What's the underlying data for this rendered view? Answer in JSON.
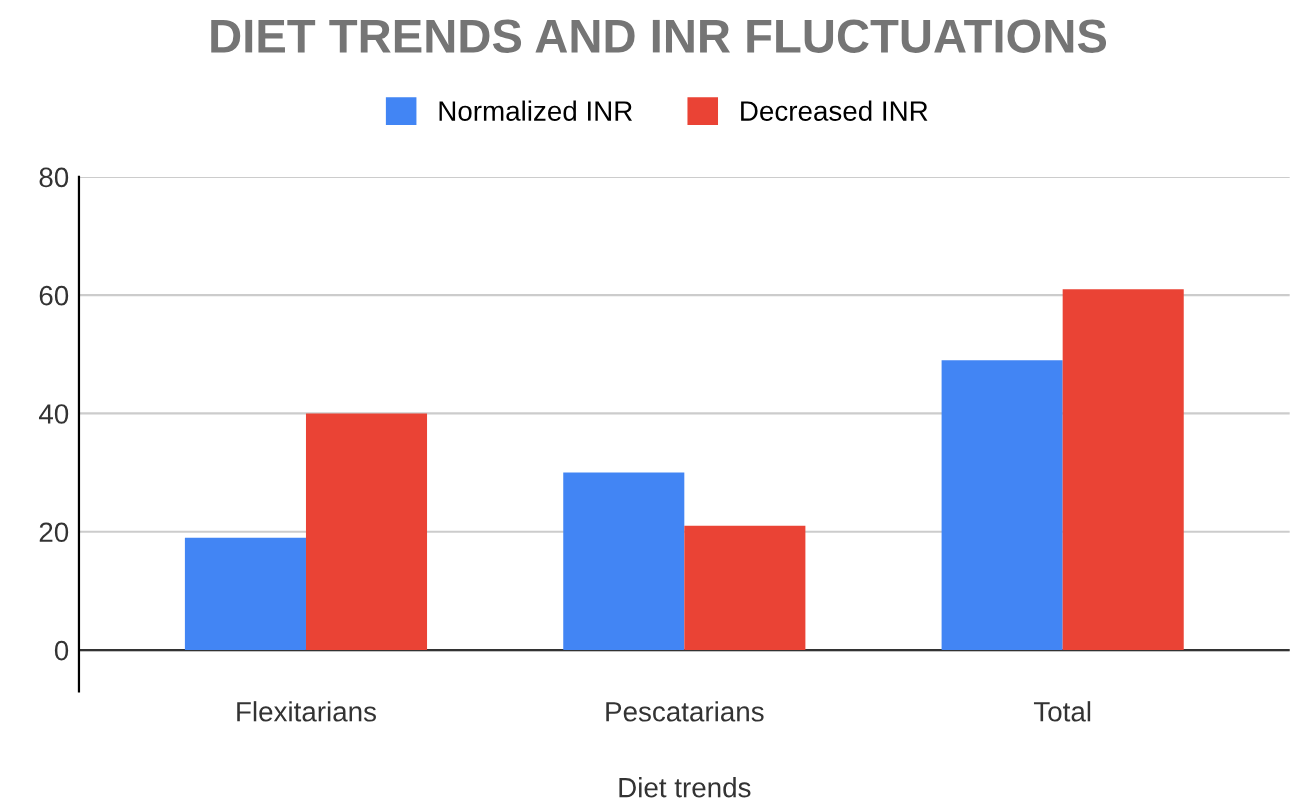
{
  "chart_data": {
    "type": "bar",
    "title": "DIET TRENDS AND INR FLUCTUATIONS",
    "xlabel": "Diet trends",
    "categories": [
      "Flexitarians",
      "Pescatarians",
      "Total"
    ],
    "series": [
      {
        "name": "Normalized INR",
        "color": "#4285f4",
        "values": [
          19,
          30,
          49
        ]
      },
      {
        "name": "Decreased INR",
        "color": "#ea4335",
        "values": [
          40,
          21,
          61
        ]
      }
    ],
    "ylim": [
      -7,
      80
    ],
    "yticks": [
      0,
      20,
      40,
      60,
      80
    ],
    "grid": "y",
    "legend": "top"
  }
}
